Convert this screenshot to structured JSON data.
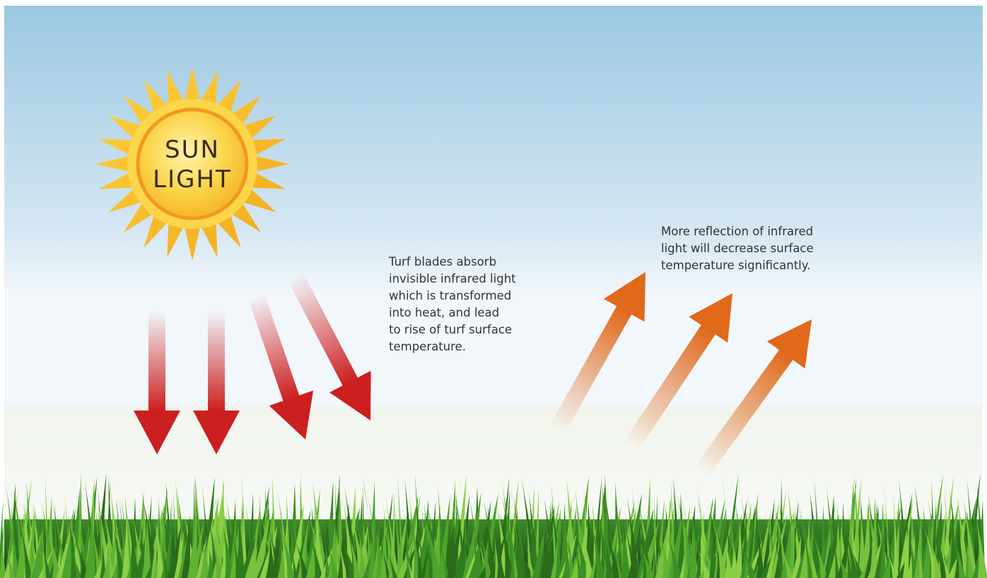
{
  "sun": {
    "label_lines": [
      "SUN",
      "LIGHT"
    ]
  },
  "absorb_note": {
    "lines": [
      "Turf blades absorb",
      "invisible infrared light",
      "which is transformed",
      "into heat, and lead",
      "to rise of turf surface",
      "temperature."
    ]
  },
  "reflect_note": {
    "lines": [
      "More reflection of infrared",
      "light will decrease surface",
      "temperature significantly."
    ]
  }
}
